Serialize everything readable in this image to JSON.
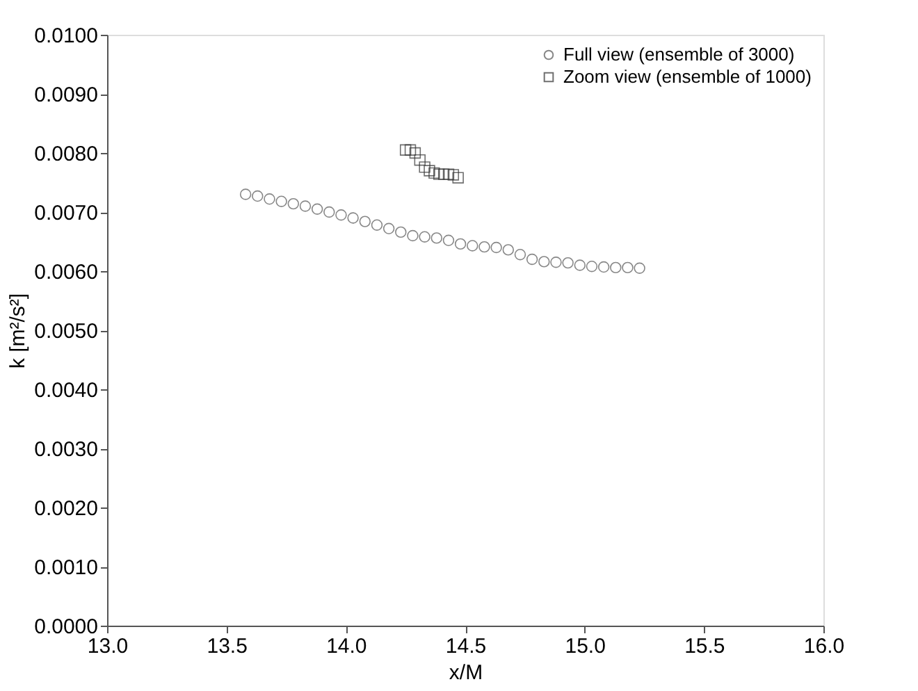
{
  "chart_data": {
    "type": "scatter",
    "xlabel": "x/M",
    "ylabel": "k  [m²/s²]",
    "xlim": [
      13.0,
      16.0
    ],
    "xticks": [
      {
        "value": 13.0,
        "label": "13.0"
      },
      {
        "value": 13.5,
        "label": "13.5"
      },
      {
        "value": 14.0,
        "label": "14.0"
      },
      {
        "value": 14.5,
        "label": "14.5"
      },
      {
        "value": 15.0,
        "label": "15.0"
      },
      {
        "value": 15.5,
        "label": "15.5"
      },
      {
        "value": 16.0,
        "label": "16.0"
      }
    ],
    "ylim": [
      0.0,
      0.01
    ],
    "yticks": [
      {
        "value": 0.0,
        "label": "0.0000"
      },
      {
        "value": 0.001,
        "label": "0.0010"
      },
      {
        "value": 0.002,
        "label": "0.0020"
      },
      {
        "value": 0.003,
        "label": "0.0030"
      },
      {
        "value": 0.004,
        "label": "0.0040"
      },
      {
        "value": 0.005,
        "label": "0.0050"
      },
      {
        "value": 0.006,
        "label": "0.0060"
      },
      {
        "value": 0.007,
        "label": "0.0070"
      },
      {
        "value": 0.008,
        "label": "0.0080"
      },
      {
        "value": 0.009,
        "label": "0.0090"
      },
      {
        "value": 0.01,
        "label": "0.0100"
      }
    ],
    "grid": false,
    "legend": "top right",
    "series": [
      {
        "name": "Full view   (ensemble of 3000)",
        "color": "#555555",
        "marker": "circle",
        "x": [
          13.58,
          13.63,
          13.68,
          13.73,
          13.78,
          13.83,
          13.88,
          13.93,
          13.98,
          14.03,
          14.08,
          14.13,
          14.18,
          14.23,
          14.28,
          14.33,
          14.38,
          14.43,
          14.48,
          14.53,
          14.58,
          14.63,
          14.68,
          14.73,
          14.78,
          14.83,
          14.88,
          14.93,
          14.98,
          15.03,
          15.08,
          15.13,
          15.18,
          15.23
        ],
        "values": [
          0.0073,
          0.00727,
          0.00722,
          0.00718,
          0.00714,
          0.0071,
          0.00705,
          0.007,
          0.00695,
          0.0069,
          0.00684,
          0.00678,
          0.00672,
          0.00666,
          0.0066,
          0.00658,
          0.00656,
          0.00652,
          0.00646,
          0.00643,
          0.00641,
          0.0064,
          0.00636,
          0.00628,
          0.0062,
          0.00616,
          0.00615,
          0.00614,
          0.0061,
          0.00608,
          0.00607,
          0.00606,
          0.00606,
          0.00605
        ]
      },
      {
        "name": "Zoom view (ensemble of 1000)",
        "color": "#333333",
        "marker": "square",
        "x": [
          14.25,
          14.27,
          14.29,
          14.31,
          14.33,
          14.35,
          14.37,
          14.39,
          14.41,
          14.43,
          14.45,
          14.47
        ],
        "values": [
          0.00805,
          0.00805,
          0.008,
          0.00788,
          0.00776,
          0.0077,
          0.00766,
          0.00764,
          0.00764,
          0.00764,
          0.00763,
          0.00758
        ]
      }
    ]
  }
}
